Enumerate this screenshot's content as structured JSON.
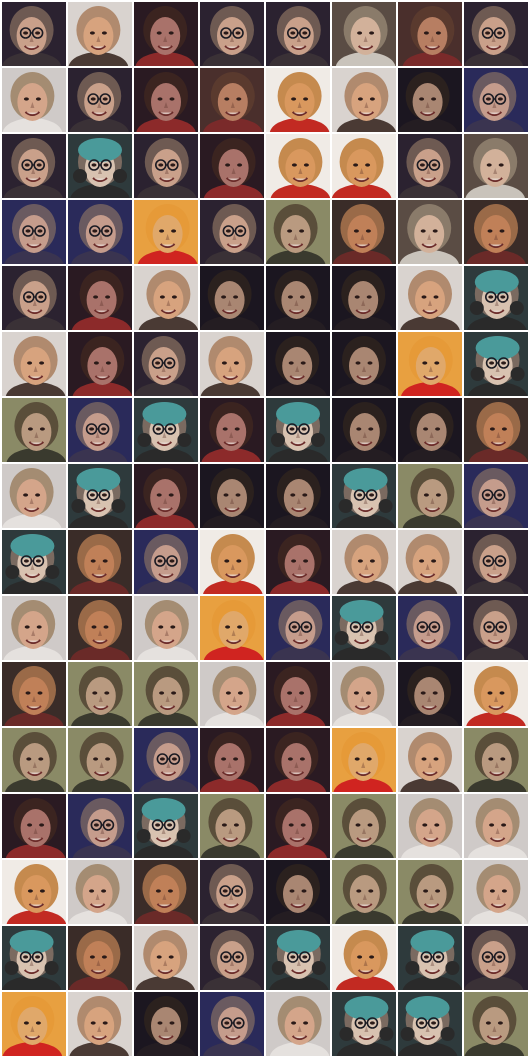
{
  "grid": {
    "rows": 16,
    "cols": 8,
    "tile_types": [
      [
        "dark_glasses",
        "bald_pale",
        "dark_red",
        "dark_glasses",
        "dark_glasses",
        "light_curly",
        "brown_red",
        "dark_glasses"
      ],
      [
        "blonde_light",
        "dark_glasses",
        "dark_red",
        "brown_red",
        "bald_orange",
        "bald_pale",
        "dark_man",
        "blue_glasses"
      ],
      [
        "dark_glasses",
        "teal_hat",
        "dark_glasses",
        "dark_red",
        "bald_orange",
        "bald_orange",
        "dark_glasses",
        "light_curly"
      ],
      [
        "blue_glasses",
        "blue_glasses",
        "orange_red",
        "dark_glasses",
        "green_man",
        "bald_brown",
        "light_curly",
        "bald_brown"
      ],
      [
        "dark_glasses",
        "dark_red",
        "bald_pale",
        "dark_man",
        "dark_man",
        "dark_man",
        "bald_pale",
        "teal_hat"
      ],
      [
        "bald_pale",
        "dark_red",
        "dark_glasses",
        "bald_pale",
        "dark_man",
        "dark_man",
        "orange_red",
        "teal_hat"
      ],
      [
        "green_man",
        "blue_glasses",
        "teal_hat",
        "dark_red",
        "teal_hat",
        "dark_man",
        "dark_man",
        "bald_brown"
      ],
      [
        "blonde_light",
        "teal_hat",
        "dark_red",
        "dark_man",
        "dark_man",
        "teal_hat",
        "green_man",
        "blue_glasses"
      ],
      [
        "teal_hat",
        "bald_brown",
        "blue_glasses",
        "bald_orange",
        "dark_red",
        "bald_pale",
        "bald_pale",
        "dark_glasses"
      ],
      [
        "blonde_light",
        "bald_brown",
        "blonde_light",
        "orange_red",
        "blue_glasses",
        "teal_hat",
        "blue_glasses",
        "dark_glasses"
      ],
      [
        "bald_brown",
        "green_man",
        "green_man",
        "blonde_light",
        "dark_red",
        "blonde_light",
        "dark_man",
        "bald_orange"
      ],
      [
        "green_man",
        "green_man",
        "blue_glasses",
        "dark_red",
        "dark_red",
        "orange_red",
        "bald_pale",
        "green_man"
      ],
      [
        "dark_red",
        "blue_glasses",
        "teal_hat",
        "green_man",
        "dark_red",
        "green_man",
        "blonde_light",
        "blonde_light"
      ],
      [
        "bald_orange",
        "blonde_light",
        "bald_brown",
        "dark_glasses",
        "dark_man",
        "green_man",
        "green_man",
        "blonde_light"
      ],
      [
        "teal_hat",
        "bald_brown",
        "bald_pale",
        "dark_glasses",
        "teal_hat",
        "bald_orange",
        "teal_hat",
        "dark_glasses"
      ],
      [
        "orange_red",
        "bald_pale",
        "dark_man",
        "blue_glasses",
        "blonde_light",
        "teal_hat",
        "teal_hat",
        "green_man"
      ]
    ],
    "palettes": {
      "dark_glasses": {
        "bg": "#2b2230",
        "hair": "#6e5a52",
        "skin": "#c9a08a",
        "shirt": "#3a3136",
        "glasses": true,
        "hat": null
      },
      "bald_pale": {
        "bg": "#d9d3cf",
        "hair": "#b08a6e",
        "skin": "#d7a37e",
        "shirt": "#4a3a34",
        "glasses": false,
        "hat": null
      },
      "dark_red": {
        "bg": "#2a1a22",
        "hair": "#3b2420",
        "skin": "#a9726a",
        "shirt": "#8c2a2a",
        "glasses": false,
        "hat": null
      },
      "light_curly": {
        "bg": "#5a4c44",
        "hair": "#8a7b6a",
        "skin": "#d2b19a",
        "shirt": "#c9c3bb",
        "glasses": false,
        "hat": null
      },
      "brown_red": {
        "bg": "#4a2f2c",
        "hair": "#5a3a2e",
        "skin": "#b77e62",
        "shirt": "#7a2a2a",
        "glasses": false,
        "hat": null
      },
      "blonde_light": {
        "bg": "#cfcac8",
        "hair": "#a48c72",
        "skin": "#d4a58a",
        "shirt": "#e5e1de",
        "glasses": false,
        "hat": null
      },
      "bald_orange": {
        "bg": "#f0ebe6",
        "hair": "#c58a4e",
        "skin": "#d9985e",
        "shirt": "#c22a22",
        "glasses": false,
        "hat": null
      },
      "dark_man": {
        "bg": "#1b1620",
        "hair": "#2b211e",
        "skin": "#a98672",
        "shirt": "#241d22",
        "glasses": false,
        "hat": null
      },
      "blue_glasses": {
        "bg": "#2a2a5a",
        "hair": "#6a5a60",
        "skin": "#c59c8c",
        "shirt": "#3a3450",
        "glasses": true,
        "hat": null
      },
      "teal_hat": {
        "bg": "#2e3a3c",
        "hair": "#7a6a60",
        "skin": "#d8c2b0",
        "shirt": "#2a2a2a",
        "glasses": true,
        "hat": "#4a9a9a"
      },
      "orange_red": {
        "bg": "#e8a040",
        "hair": "#e69a38",
        "skin": "#e0a86a",
        "shirt": "#d02420",
        "glasses": false,
        "hat": null
      },
      "green_man": {
        "bg": "#8a8a66",
        "hair": "#5a4e3a",
        "skin": "#b99a80",
        "shirt": "#3a3a2e",
        "glasses": false,
        "hat": null
      },
      "bald_brown": {
        "bg": "#3a2c28",
        "hair": "#9a6a48",
        "skin": "#c08058",
        "shirt": "#6a2a28",
        "glasses": false,
        "hat": null
      }
    }
  }
}
